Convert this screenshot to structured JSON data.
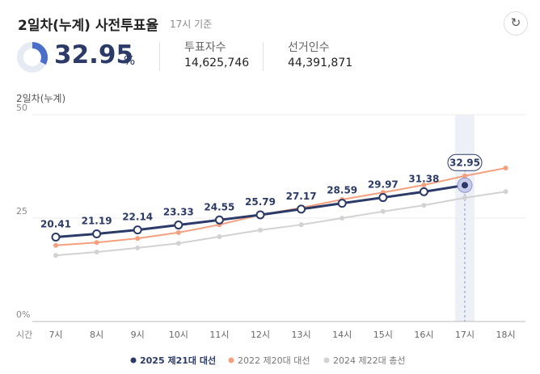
{
  "header": {
    "title": "2일차(누계) 사전투표율",
    "basis": "17시 기준",
    "rate": 32.95,
    "rate_unit": "%",
    "voters_label": "투표자수",
    "voters": "14,625,746",
    "electors_label": "선거인수",
    "electors": "44,391,871"
  },
  "chart_data": {
    "type": "line",
    "y_label": "2일차(누계)",
    "x_label": "시간",
    "categories": [
      "7시",
      "8시",
      "9시",
      "10시",
      "11시",
      "12시",
      "13시",
      "14시",
      "15시",
      "16시",
      "17시",
      "18시"
    ],
    "ylim": [
      0,
      50
    ],
    "yticks": [
      {
        "value": 0,
        "label": "0%"
      },
      25,
      50
    ],
    "grid": true,
    "legend": "bottom",
    "series": [
      {
        "name": "2025 제21대 대선",
        "color": "#2b3a67",
        "values": [
          20.41,
          21.19,
          22.14,
          23.33,
          24.55,
          25.79,
          27.17,
          28.59,
          29.97,
          31.38,
          32.95,
          null
        ]
      },
      {
        "name": "2022 제20대 대선",
        "color": "#f4a07e",
        "values": [
          18.4,
          19.1,
          20.1,
          21.5,
          23.4,
          25.8,
          27.5,
          29.5,
          31.2,
          33.0,
          35.2,
          37.1
        ]
      },
      {
        "name": "2024 제22대 총선",
        "color": "#d2d2d2",
        "values": [
          16.0,
          16.8,
          17.8,
          18.9,
          20.5,
          22.1,
          23.4,
          25.0,
          26.6,
          28.1,
          29.9,
          31.4
        ]
      }
    ]
  }
}
